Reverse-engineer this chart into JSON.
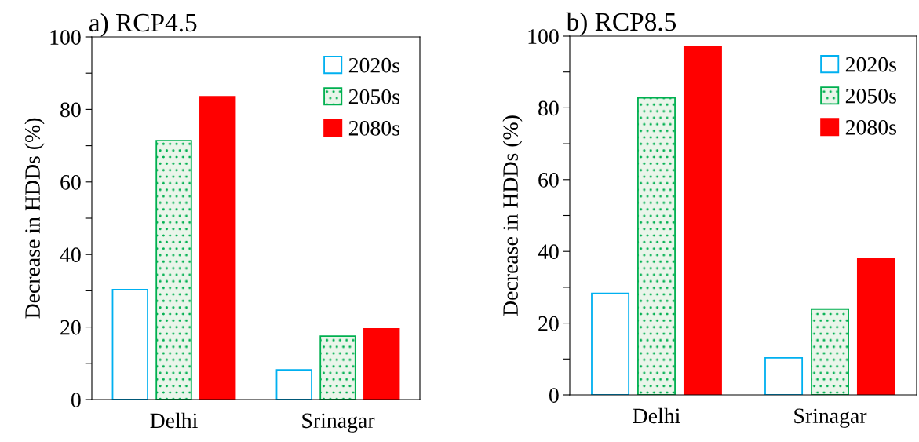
{
  "chart_data": [
    {
      "type": "bar",
      "title": "a) RCP4.5",
      "ylabel": "Decrease in HDDs (%)",
      "categories": [
        "Delhi",
        "Srinagar"
      ],
      "series": [
        {
          "name": "2020s",
          "color": "#00b0f0",
          "values": [
            30.3,
            8.2
          ]
        },
        {
          "name": "2050s",
          "color": "#00b050",
          "values": [
            71.4,
            17.5
          ]
        },
        {
          "name": "2080s",
          "color": "#ff0000",
          "values": [
            83.5,
            19.5
          ]
        }
      ],
      "ylim": [
        0,
        100
      ],
      "yticks": [
        0,
        {
          "value": 10,
          "label": null
        },
        20,
        {
          "value": 30,
          "label": null
        },
        40,
        {
          "value": 50,
          "label": null
        },
        60,
        {
          "value": 70,
          "label": null
        },
        80,
        {
          "value": 90,
          "label": null
        },
        100
      ],
      "legend": "top right",
      "grid": false
    },
    {
      "type": "bar",
      "title": "b) RCP8.5",
      "ylabel": "Decrease in HDDs (%)",
      "categories": [
        "Delhi",
        "Srinagar"
      ],
      "series": [
        {
          "name": "2020s",
          "color": "#00b0f0",
          "values": [
            28.3,
            10.3
          ]
        },
        {
          "name": "2050s",
          "color": "#00b050",
          "values": [
            82.8,
            23.9
          ]
        },
        {
          "name": "2080s",
          "color": "#ff0000",
          "values": [
            97,
            38.1
          ]
        }
      ],
      "ylim": [
        0,
        100
      ],
      "yticks": [
        0,
        {
          "value": 10,
          "label": null
        },
        20,
        {
          "value": 30,
          "label": null
        },
        40,
        {
          "value": 50,
          "label": null
        },
        60,
        {
          "value": 70,
          "label": null
        },
        80,
        {
          "value": 90,
          "label": null
        },
        100
      ],
      "legend": "top right",
      "grid": false
    }
  ]
}
